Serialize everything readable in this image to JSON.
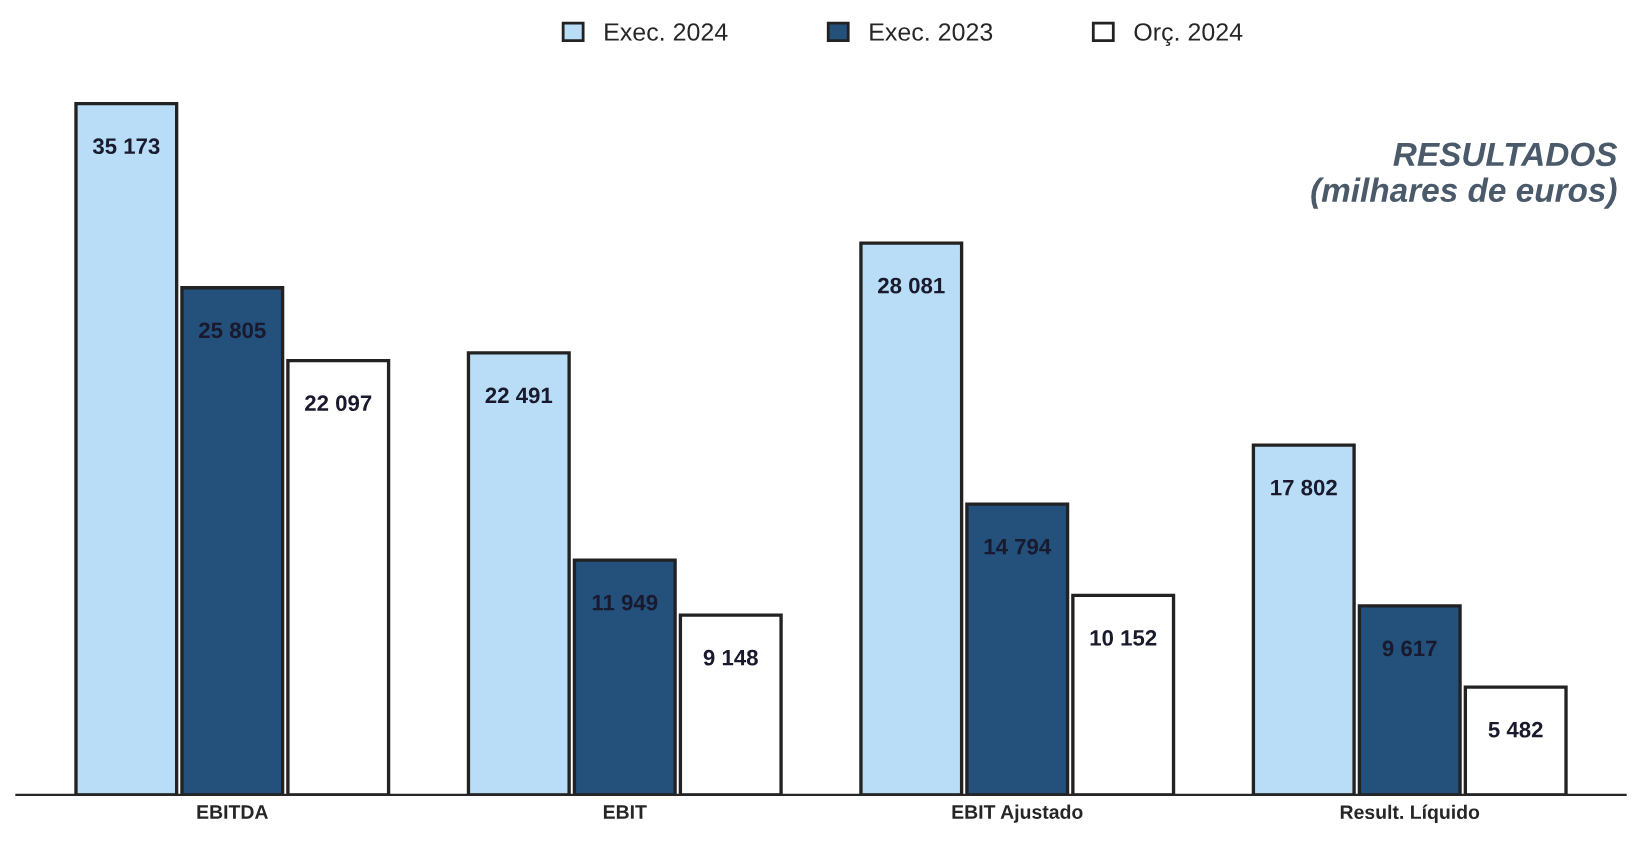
{
  "chart_data": {
    "type": "bar",
    "title": "RESULTADOS\n(milhares de euros)",
    "categories": [
      "EBITDA",
      "EBIT",
      "EBIT Ajustado",
      "Result. Líquido"
    ],
    "series": [
      {
        "name": "Exec. 2024",
        "color": "#b9ddf6",
        "values": [
          35173,
          22491,
          28081,
          17802
        ],
        "value_labels": [
          "35 173",
          "22 491",
          "28 081",
          "17 802"
        ]
      },
      {
        "name": "Exec. 2023",
        "color": "#24507c",
        "values": [
          25805,
          11949,
          14794,
          9617
        ],
        "value_labels": [
          "25 805",
          "11 949",
          "14 794",
          "9 617"
        ]
      },
      {
        "name": "Orç. 2024",
        "color": "#ffffff",
        "values": [
          22097,
          9148,
          10152,
          5482
        ],
        "value_labels": [
          "22 097",
          "9 148",
          "10 152",
          "5 482"
        ]
      }
    ],
    "legend": "top",
    "tick_labels": "x",
    "grid": false
  }
}
